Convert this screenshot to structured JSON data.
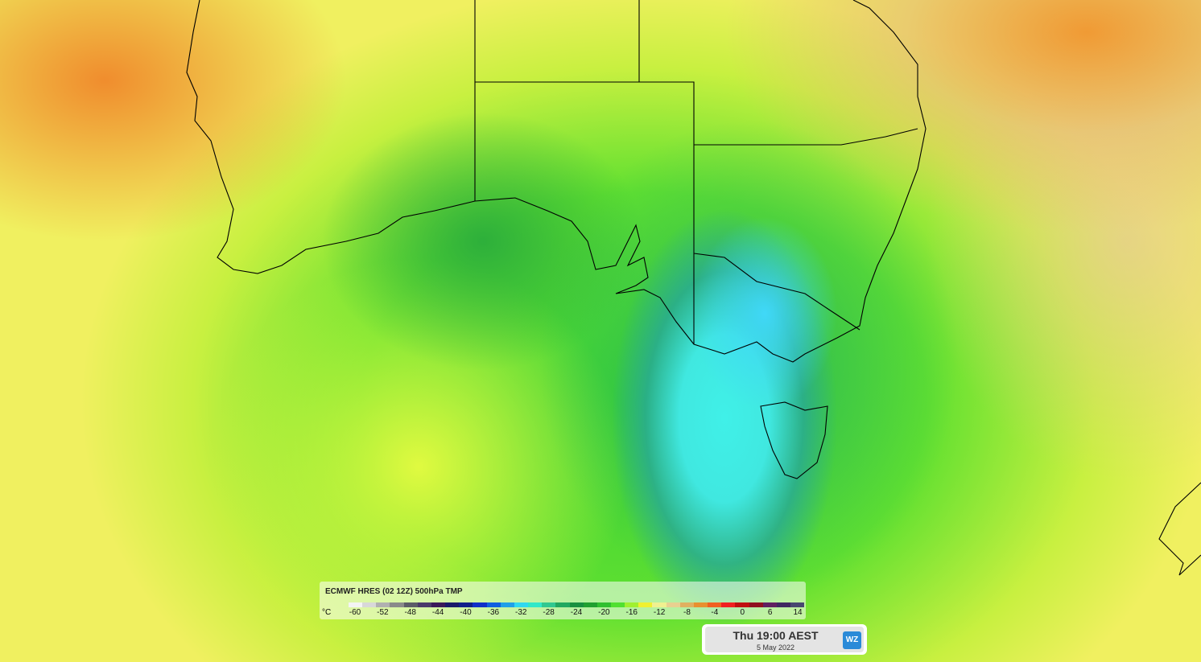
{
  "legend": {
    "title": "ECMWF HRES (02 12Z) 500hPa TMP",
    "unit": "°C",
    "ticks": [
      -60,
      -52,
      -48,
      -44,
      -40,
      -36,
      -32,
      -28,
      -24,
      -20,
      -16,
      -12,
      -8,
      -4,
      0,
      6,
      14
    ],
    "colors": [
      "#f4f4f4",
      "#d8d8d8",
      "#b0b0b0",
      "#8a8a8a",
      "#5c5c68",
      "#4a3a6a",
      "#3a1a5a",
      "#1a1a6a",
      "#10208a",
      "#1030c8",
      "#1060e0",
      "#20a0e8",
      "#30d8f0",
      "#30e8c8",
      "#30c890",
      "#20a860",
      "#189040",
      "#20a030",
      "#30c030",
      "#50e030",
      "#a0f030",
      "#f0f030",
      "#f0f090",
      "#e8d090",
      "#e0b060",
      "#e89030",
      "#f06020",
      "#f02020",
      "#c01010",
      "#901020",
      "#602060",
      "#402860",
      "#484870"
    ]
  },
  "time": {
    "label": "Thu 19:00 AEST",
    "date": "5 May 2022",
    "logo": "WZ"
  }
}
